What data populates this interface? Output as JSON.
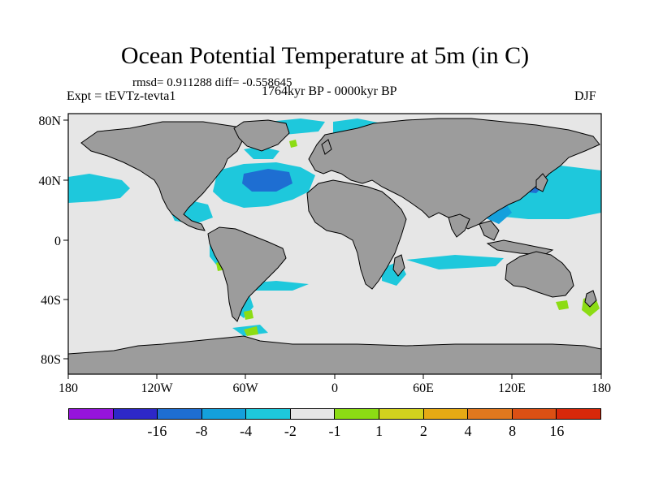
{
  "title": "Ocean Potential Temperature at 5m (in C)",
  "stats": "rmsd= 0.911288 diff= -0.558645",
  "experiment": "Expt = tEVTz-tevta1",
  "period": "1764kyr BP - 0000kyr BP",
  "season": "DJF",
  "axes": {
    "lon_ticks": [
      "180",
      "120W",
      "60W",
      "0",
      "60E",
      "120E",
      "180"
    ],
    "lat_ticks": [
      "80N",
      "40N",
      "0",
      "40S",
      "80S"
    ]
  },
  "colors": {
    "land": "#9c9c9c",
    "ocean_neutral": "#e6e6e6",
    "cool_moderate": "#1ec8dc",
    "cool_strong": "#14a0dc",
    "cool_stronger": "#1e6ed2",
    "warm_mild": "#8cdc14"
  },
  "colorbar": {
    "colors": [
      "#9614dc",
      "#2d28c8",
      "#1e6ed2",
      "#14a0dc",
      "#1ec8dc",
      "#e6e6e6",
      "#8cdc14",
      "#d2d21e",
      "#e6aa14",
      "#e1781e",
      "#dc5014",
      "#d7280a"
    ],
    "labels": [
      "-16",
      "-8",
      "-4",
      "-2",
      "-1",
      "1",
      "2",
      "4",
      "8",
      "16"
    ]
  }
}
